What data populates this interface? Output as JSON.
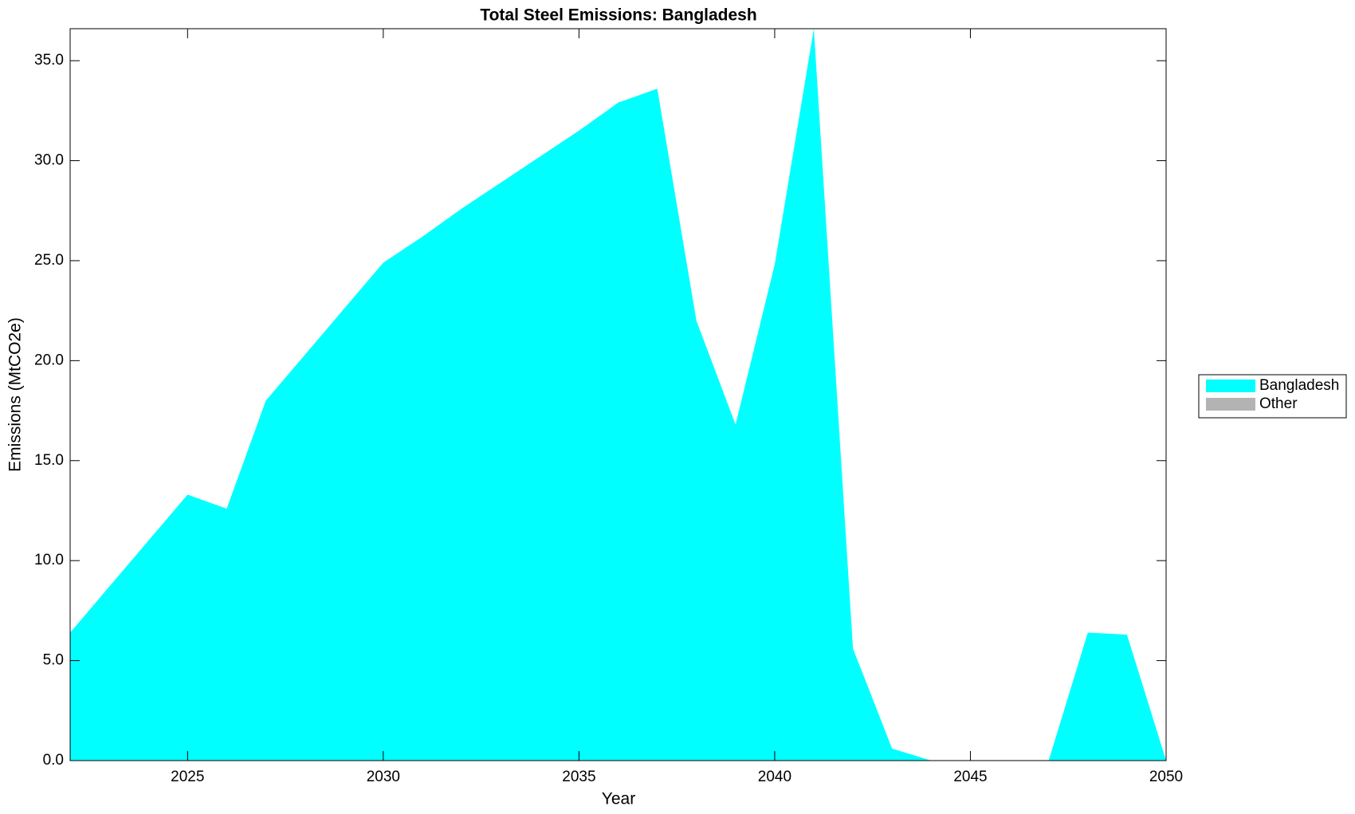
{
  "chart_data": {
    "type": "area",
    "title": "Total Steel Emissions: Bangladesh",
    "x_label": "Year",
    "y_label": "Emissions (MtCO2e)",
    "x": [
      2022,
      2023,
      2024,
      2025,
      2026,
      2027,
      2028,
      2029,
      2030,
      2031,
      2032,
      2033,
      2034,
      2035,
      2036,
      2037,
      2038,
      2039,
      2040,
      2041,
      2042,
      2043,
      2044,
      2045,
      2046,
      2047,
      2048,
      2049,
      2050
    ],
    "series": [
      {
        "name": "Bangladesh",
        "color": "#00ffff",
        "values": [
          6.4,
          8.7,
          11.0,
          13.3,
          12.6,
          18.0,
          20.3,
          22.6,
          24.9,
          26.2,
          27.6,
          28.9,
          30.2,
          31.5,
          32.9,
          33.6,
          22.0,
          16.8,
          24.8,
          36.6,
          5.6,
          0.6,
          0,
          0,
          0,
          0,
          6.4,
          6.3,
          0
        ]
      },
      {
        "name": "Other",
        "color": "#b3b3b3",
        "values": [
          0,
          0,
          0,
          0,
          0,
          0,
          0,
          0,
          0,
          0,
          0,
          0,
          0,
          0,
          0,
          0,
          0,
          0,
          0,
          0,
          0,
          0,
          0,
          0,
          0,
          0,
          0,
          0,
          0
        ]
      }
    ],
    "stacked": true,
    "xlim": [
      2022,
      2050
    ],
    "xticks": [
      2025,
      2030,
      2035,
      2040,
      2045,
      2050
    ],
    "ylim": [
      0,
      36.6
    ],
    "yticks": [
      {
        "value": 0,
        "label": "0.0"
      },
      {
        "value": 5,
        "label": "5.0"
      },
      {
        "value": 10,
        "label": "10.0"
      },
      {
        "value": 15,
        "label": "15.0"
      },
      {
        "value": 20,
        "label": "20.0"
      },
      {
        "value": 25,
        "label": "25.0"
      },
      {
        "value": 30,
        "label": "30.0"
      },
      {
        "value": 35,
        "label": "35.0"
      }
    ],
    "legend": "right"
  }
}
